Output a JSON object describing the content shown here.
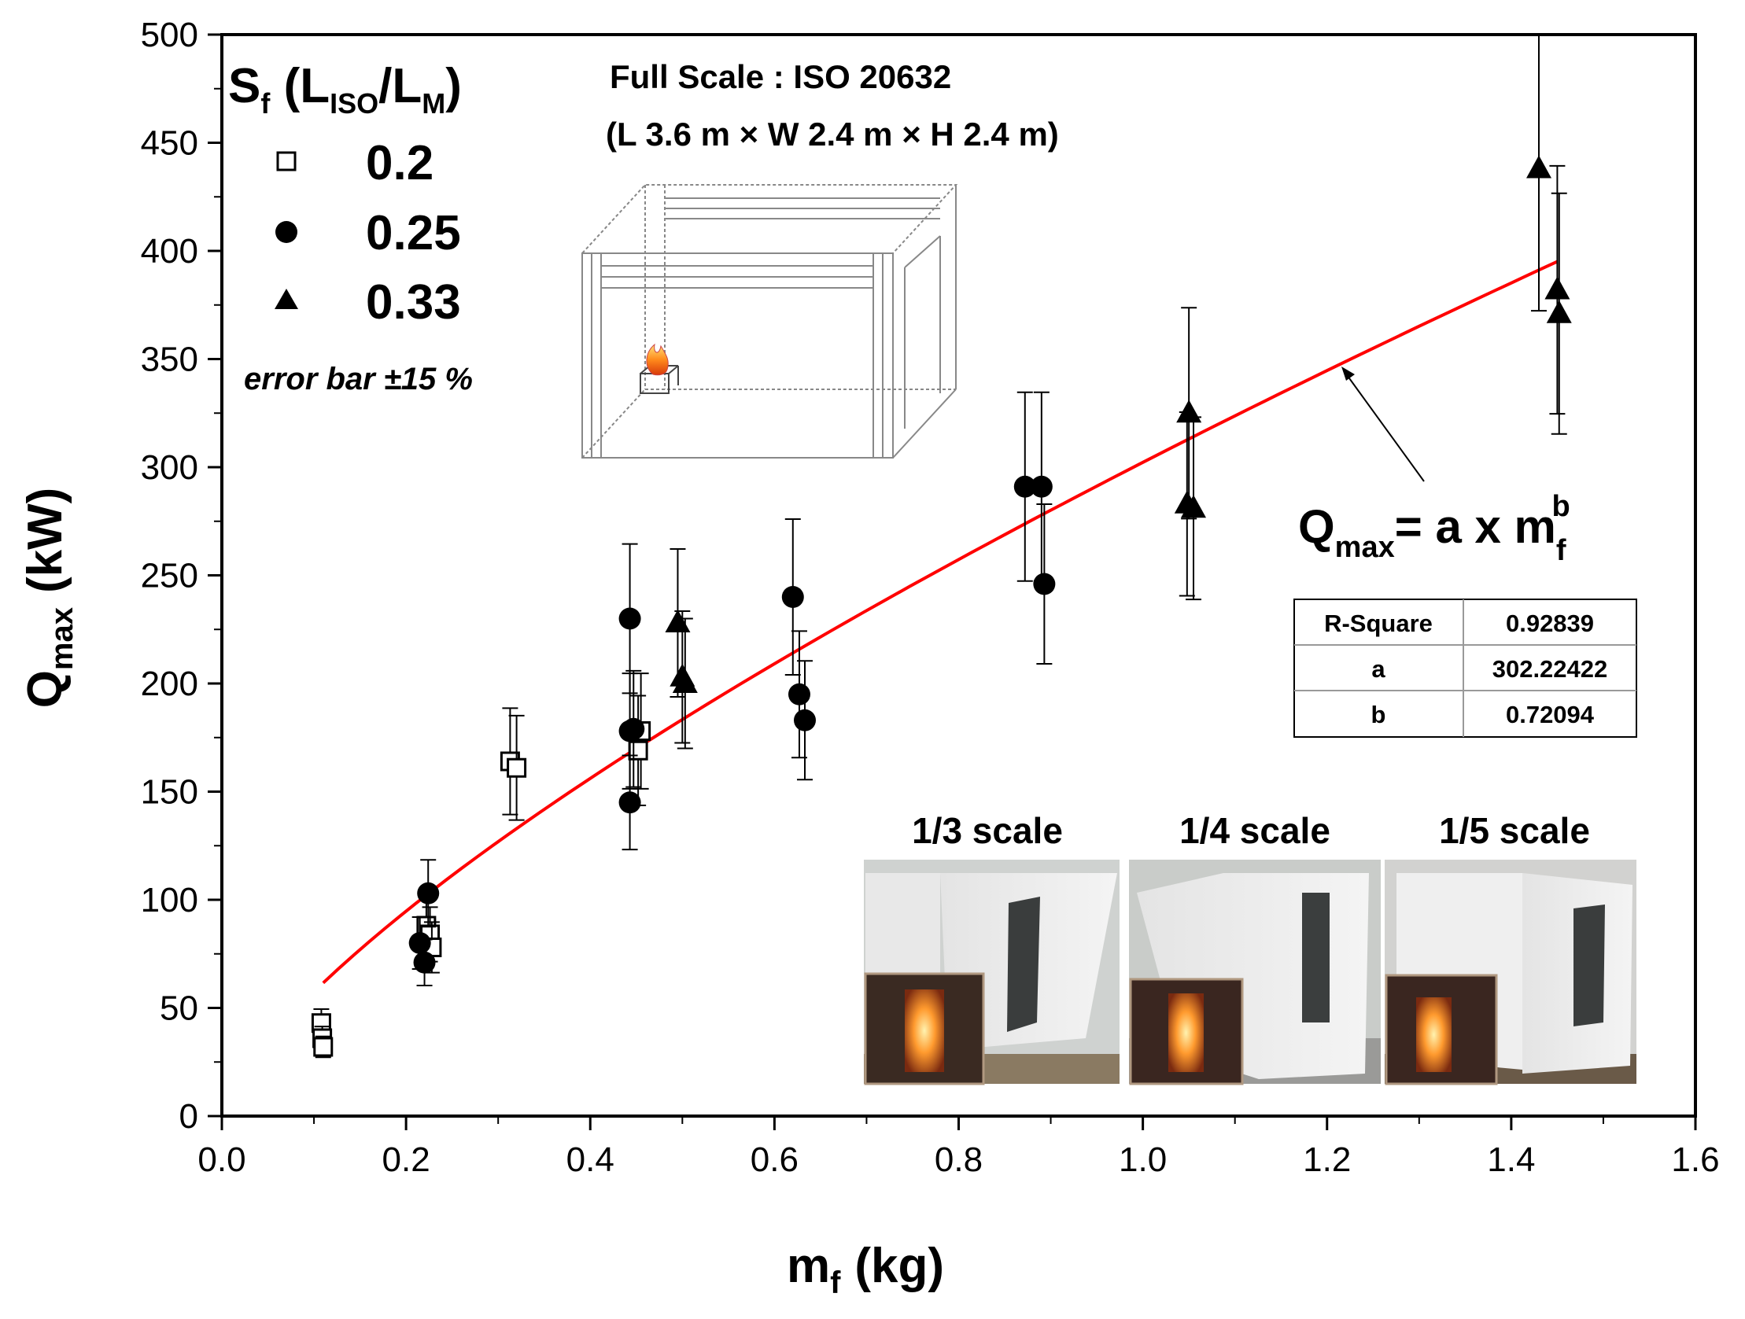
{
  "chart_data": {
    "type": "scatter",
    "title": "",
    "xlabel": "m",
    "xlabel_sub": "f",
    "xlabel_unit": "(kg)",
    "ylabel": "Q",
    "ylabel_sub": "max",
    "ylabel_unit": "(kW)",
    "xlim": [
      0.0,
      1.6
    ],
    "ylim": [
      0,
      500
    ],
    "x_ticks": [
      "0.0",
      "0.2",
      "0.4",
      "0.6",
      "0.8",
      "1.0",
      "1.2",
      "1.4",
      "1.6"
    ],
    "y_ticks": [
      "0",
      "50",
      "100",
      "150",
      "200",
      "250",
      "300",
      "350",
      "400",
      "450",
      "500"
    ],
    "error_bar_fraction": 0.15,
    "legend": {
      "title_main": "S",
      "title_sub": "f",
      "title_rest_open": " (L",
      "title_sub2": "ISO",
      "title_slash": "/L",
      "title_sub3": "M",
      "title_close": ")",
      "entries": [
        "0.2",
        "0.25",
        "0.33"
      ]
    },
    "error_note": "error bar ±15 %",
    "series": [
      {
        "name": "0.2",
        "marker": "open-square",
        "points": [
          {
            "x": 0.108,
            "y": 43
          },
          {
            "x": 0.109,
            "y": 36
          },
          {
            "x": 0.11,
            "y": 32
          },
          {
            "x": 0.222,
            "y": 88
          },
          {
            "x": 0.226,
            "y": 84
          },
          {
            "x": 0.228,
            "y": 78
          },
          {
            "x": 0.313,
            "y": 164
          },
          {
            "x": 0.32,
            "y": 161
          },
          {
            "x": 0.455,
            "y": 178
          },
          {
            "x": 0.452,
            "y": 169
          }
        ]
      },
      {
        "name": "0.25",
        "marker": "filled-circle",
        "points": [
          {
            "x": 0.215,
            "y": 80
          },
          {
            "x": 0.22,
            "y": 71
          },
          {
            "x": 0.224,
            "y": 103
          },
          {
            "x": 0.443,
            "y": 230
          },
          {
            "x": 0.443,
            "y": 178
          },
          {
            "x": 0.447,
            "y": 179
          },
          {
            "x": 0.443,
            "y": 145
          },
          {
            "x": 0.62,
            "y": 240
          },
          {
            "x": 0.627,
            "y": 195
          },
          {
            "x": 0.633,
            "y": 183
          },
          {
            "x": 0.872,
            "y": 291
          },
          {
            "x": 0.89,
            "y": 291
          },
          {
            "x": 0.893,
            "y": 246
          }
        ]
      },
      {
        "name": "0.33",
        "marker": "filled-triangle",
        "points": [
          {
            "x": 0.495,
            "y": 228
          },
          {
            "x": 0.5,
            "y": 203
          },
          {
            "x": 0.503,
            "y": 200
          },
          {
            "x": 1.05,
            "y": 325
          },
          {
            "x": 1.048,
            "y": 283
          },
          {
            "x": 1.055,
            "y": 281
          },
          {
            "x": 1.43,
            "y": 438
          },
          {
            "x": 1.45,
            "y": 382
          },
          {
            "x": 1.452,
            "y": 371
          }
        ]
      }
    ],
    "fit": {
      "name": "Q_max = a x m_f^b",
      "a": 302.22422,
      "b": 0.72094,
      "x_range": [
        0.11,
        1.45
      ],
      "color": "#ff0000"
    },
    "equation": {
      "lhs": "Q",
      "lhs_sub": "max",
      "rhs": "= a x m",
      "rhs_sub": "f",
      "rhs_sup": "b"
    },
    "fit_table": [
      [
        "R-Square",
        "0.92839"
      ],
      [
        "a",
        "302.22422"
      ],
      [
        "b",
        "0.72094"
      ]
    ],
    "full_scale": {
      "line1": "Full Scale : ISO 20632",
      "line2": "(L 3.6 m × W 2.4 m × H 2.4 m)"
    },
    "photo_labels": [
      "1/3 scale",
      "1/4 scale",
      "1/5 scale"
    ]
  }
}
